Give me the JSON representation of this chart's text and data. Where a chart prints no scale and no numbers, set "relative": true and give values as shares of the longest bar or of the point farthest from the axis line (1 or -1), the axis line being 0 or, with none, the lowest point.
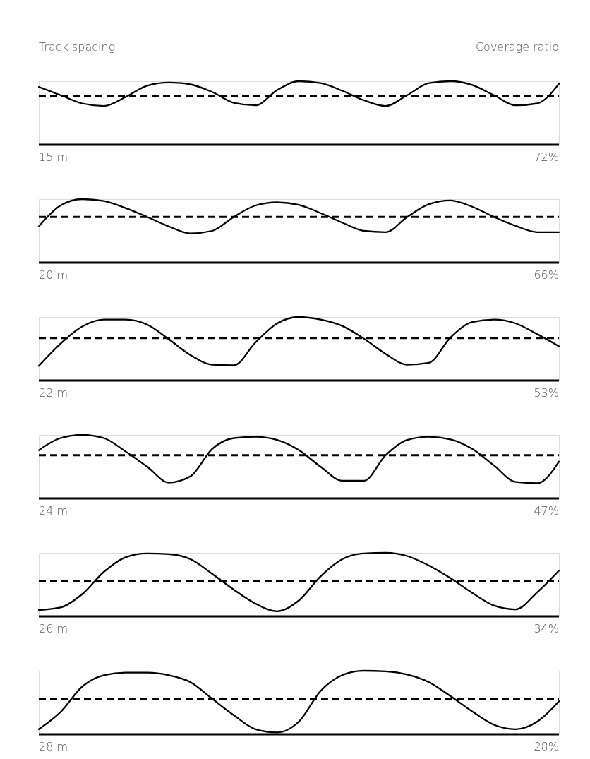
{
  "chart_data": [
    {
      "type": "line",
      "relative": true,
      "marker": "none",
      "line_style": "solid",
      "annotations": [
        "Track spacing",
        "Coverage ratio",
        "15 m",
        "72%"
      ],
      "categories": [
        null,
        null,
        null,
        null,
        null,
        null,
        null,
        null,
        null,
        null,
        null,
        null,
        null,
        null,
        null,
        null,
        null,
        null,
        null,
        null,
        null,
        null,
        null,
        null,
        null
      ],
      "series": [
        {
          "color": "#000000",
          "values": [
            0.91,
            0.78,
            0.65,
            0.61,
            0.75,
            0.93,
            0.98,
            0.95,
            0.83,
            0.66,
            0.62,
            0.86,
            1.0,
            0.97,
            0.85,
            0.7,
            0.61,
            0.78,
            0.97,
            1.0,
            0.94,
            0.78,
            0.62,
            0.65,
            0.96
          ]
        }
      ],
      "ref_lines": [
        {
          "axis": "y",
          "value": 0.77,
          "color": "#000000",
          "line_style": "dashed"
        }
      ]
    },
    {
      "type": "line",
      "relative": true,
      "marker": "none",
      "line_style": "solid",
      "annotations": [
        "20 m",
        "66%"
      ],
      "categories": [
        null,
        null,
        null,
        null,
        null,
        null,
        null,
        null,
        null,
        null,
        null,
        null,
        null,
        null,
        null,
        null,
        null,
        null,
        null,
        null,
        null,
        null,
        null,
        null,
        null
      ],
      "series": [
        {
          "color": "#000000",
          "values": [
            0.57,
            0.9,
            1.0,
            0.97,
            0.86,
            0.72,
            0.57,
            0.46,
            0.5,
            0.72,
            0.9,
            0.95,
            0.91,
            0.78,
            0.63,
            0.5,
            0.48,
            0.72,
            0.92,
            0.98,
            0.88,
            0.72,
            0.58,
            0.48,
            0.48
          ]
        }
      ],
      "ref_lines": [
        {
          "axis": "y",
          "value": 0.72,
          "color": "#000000",
          "line_style": "dashed"
        }
      ]
    },
    {
      "type": "line",
      "relative": true,
      "marker": "none",
      "line_style": "solid",
      "annotations": [
        "22 m",
        "53%"
      ],
      "categories": [
        null,
        null,
        null,
        null,
        null,
        null,
        null,
        null,
        null,
        null,
        null,
        null,
        null,
        null,
        null,
        null,
        null,
        null,
        null,
        null,
        null,
        null,
        null,
        null,
        null
      ],
      "series": [
        {
          "color": "#000000",
          "values": [
            0.23,
            0.58,
            0.85,
            0.96,
            0.96,
            0.88,
            0.65,
            0.4,
            0.25,
            0.24,
            0.6,
            0.9,
            1.0,
            0.96,
            0.86,
            0.66,
            0.42,
            0.25,
            0.28,
            0.68,
            0.92,
            0.96,
            0.9,
            0.73,
            0.54
          ]
        }
      ],
      "ref_lines": [
        {
          "axis": "y",
          "value": 0.67,
          "color": "#000000",
          "line_style": "dashed"
        }
      ]
    },
    {
      "type": "line",
      "relative": true,
      "marker": "none",
      "line_style": "solid",
      "annotations": [
        "24 m",
        "47%"
      ],
      "categories": [
        null,
        null,
        null,
        null,
        null,
        null,
        null,
        null,
        null,
        null,
        null,
        null,
        null,
        null,
        null,
        null,
        null,
        null,
        null,
        null,
        null,
        null,
        null,
        null,
        null
      ],
      "series": [
        {
          "color": "#000000",
          "values": [
            0.76,
            0.95,
            1.0,
            0.95,
            0.74,
            0.5,
            0.25,
            0.35,
            0.78,
            0.95,
            0.97,
            0.92,
            0.76,
            0.5,
            0.28,
            0.28,
            0.68,
            0.92,
            0.97,
            0.93,
            0.78,
            0.52,
            0.26,
            0.24,
            0.58
          ]
        }
      ],
      "ref_lines": [
        {
          "axis": "y",
          "value": 0.68,
          "color": "#000000",
          "line_style": "dashed"
        }
      ]
    },
    {
      "type": "line",
      "relative": true,
      "marker": "none",
      "line_style": "solid",
      "annotations": [
        "26 m",
        "34%"
      ],
      "categories": [
        null,
        null,
        null,
        null,
        null,
        null,
        null,
        null,
        null,
        null,
        null,
        null,
        null,
        null,
        null,
        null,
        null,
        null,
        null,
        null,
        null,
        null,
        null,
        null,
        null
      ],
      "series": [
        {
          "color": "#000000",
          "values": [
            0.1,
            0.14,
            0.35,
            0.7,
            0.93,
            0.99,
            0.98,
            0.9,
            0.67,
            0.42,
            0.2,
            0.08,
            0.25,
            0.63,
            0.9,
            0.99,
            1.0,
            0.95,
            0.8,
            0.6,
            0.37,
            0.17,
            0.11,
            0.38,
            0.72
          ]
        }
      ],
      "ref_lines": [
        {
          "axis": "y",
          "value": 0.55,
          "color": "#000000",
          "line_style": "dashed"
        }
      ]
    },
    {
      "type": "line",
      "relative": true,
      "marker": "none",
      "line_style": "solid",
      "annotations": [
        "28 m",
        "28%"
      ],
      "categories": [
        null,
        null,
        null,
        null,
        null,
        null,
        null,
        null,
        null,
        null,
        null,
        null,
        null,
        null,
        null,
        null,
        null,
        null,
        null,
        null,
        null,
        null,
        null,
        null,
        null
      ],
      "series": [
        {
          "color": "#000000",
          "values": [
            0.08,
            0.35,
            0.75,
            0.93,
            0.97,
            0.97,
            0.93,
            0.82,
            0.56,
            0.3,
            0.08,
            0.03,
            0.2,
            0.68,
            0.93,
            1.0,
            0.99,
            0.94,
            0.82,
            0.6,
            0.36,
            0.15,
            0.08,
            0.2,
            0.52
          ]
        }
      ],
      "ref_lines": [
        {
          "axis": "y",
          "value": 0.55,
          "color": "#000000",
          "line_style": "dashed"
        }
      ]
    }
  ]
}
